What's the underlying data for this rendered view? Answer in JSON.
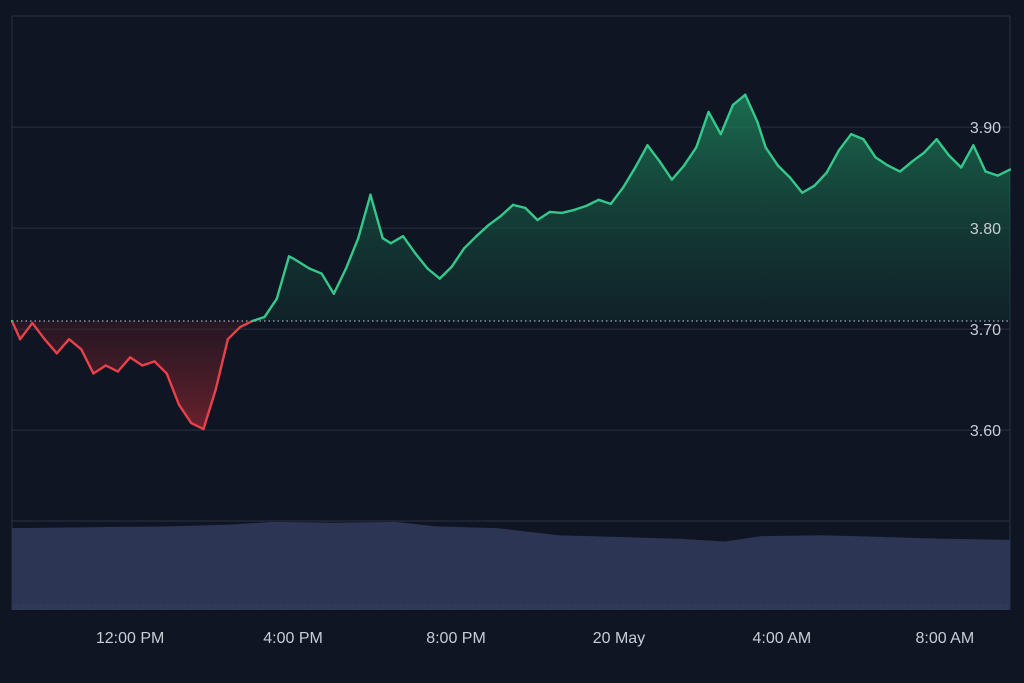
{
  "chart_data": {
    "type": "area",
    "title": "",
    "xlabel": "",
    "ylabel": "",
    "baseline": 3.708,
    "ylim": [
      3.51,
      4.01
    ],
    "yticks": [
      3.6,
      3.7,
      3.8,
      3.9
    ],
    "ytick_labels": [
      "3.60",
      "3.70",
      "3.80",
      "3.90"
    ],
    "xticks": [
      "12:00 PM",
      "4:00 PM",
      "8:00 PM",
      "20 May",
      "4:00 AM",
      "8:00 AM"
    ],
    "xtick_hours": [
      12,
      16,
      20,
      24,
      28,
      32
    ],
    "xlim_hours": [
      9.1,
      33.6
    ],
    "grid": true,
    "colors": {
      "background": "#0f1523",
      "grid": "#2a3142",
      "up_line": "#34c98a",
      "down_line": "#e9414a",
      "baseline": "#c9cdd6",
      "volume": "#2c3554",
      "volume_line": "#3f4a70"
    },
    "series": [
      {
        "hours": [
          9.1,
          9.3,
          9.6,
          9.9,
          10.2,
          10.5,
          10.8,
          11.1,
          11.4,
          11.7,
          12.0,
          12.3,
          12.6,
          12.9,
          13.2,
          13.5,
          13.8,
          14.1,
          14.4,
          14.7,
          15.0,
          15.3,
          15.6,
          15.9,
          16.0,
          16.4,
          16.7,
          17.0,
          17.3,
          17.6,
          17.9,
          18.2,
          18.4,
          18.7,
          19.0,
          19.3,
          19.6,
          19.9,
          20.2,
          20.5,
          20.8,
          21.1,
          21.4,
          21.7,
          22.0,
          22.3,
          22.6,
          22.9,
          23.2,
          23.5,
          23.8,
          24.1,
          24.4,
          24.7,
          25.0,
          25.3,
          25.6,
          25.9,
          26.2,
          26.5,
          26.8,
          27.1,
          27.4,
          27.6,
          27.9,
          28.2,
          28.5,
          28.8,
          29.1,
          29.4,
          29.7,
          30.0,
          30.3,
          30.6,
          30.9,
          31.2,
          31.5,
          31.8,
          32.1,
          32.4,
          32.7,
          33.0,
          33.3,
          33.6
        ],
        "values": [
          3.708,
          3.69,
          3.706,
          3.69,
          3.676,
          3.69,
          3.68,
          3.656,
          3.664,
          3.658,
          3.672,
          3.664,
          3.668,
          3.656,
          3.625,
          3.607,
          3.601,
          3.64,
          3.69,
          3.702,
          3.708,
          3.712,
          3.73,
          3.772,
          3.77,
          3.76,
          3.755,
          3.735,
          3.76,
          3.79,
          3.833,
          3.79,
          3.785,
          3.792,
          3.775,
          3.76,
          3.75,
          3.762,
          3.78,
          3.792,
          3.803,
          3.812,
          3.823,
          3.82,
          3.808,
          3.816,
          3.815,
          3.818,
          3.822,
          3.828,
          3.824,
          3.84,
          3.86,
          3.882,
          3.866,
          3.848,
          3.862,
          3.88,
          3.915,
          3.893,
          3.922,
          3.932,
          3.905,
          3.88,
          3.862,
          3.85,
          3.835,
          3.842,
          3.855,
          3.877,
          3.893,
          3.888,
          3.87,
          3.862,
          3.856,
          3.866,
          3.875,
          3.888,
          3.872,
          3.86,
          3.882,
          3.856,
          3.852,
          3.858
        ]
      }
    ],
    "volume": {
      "hours": [
        9.1,
        11.0,
        13.0,
        14.5,
        15.5,
        17.0,
        18.5,
        19.5,
        21.0,
        22.5,
        24.0,
        25.5,
        26.6,
        27.5,
        29.0,
        30.5,
        32.0,
        33.4,
        33.6
      ],
      "values": [
        0.92,
        0.93,
        0.94,
        0.96,
        0.99,
        0.98,
        0.99,
        0.94,
        0.92,
        0.84,
        0.82,
        0.8,
        0.77,
        0.83,
        0.84,
        0.82,
        0.8,
        0.79,
        0.79
      ]
    }
  }
}
